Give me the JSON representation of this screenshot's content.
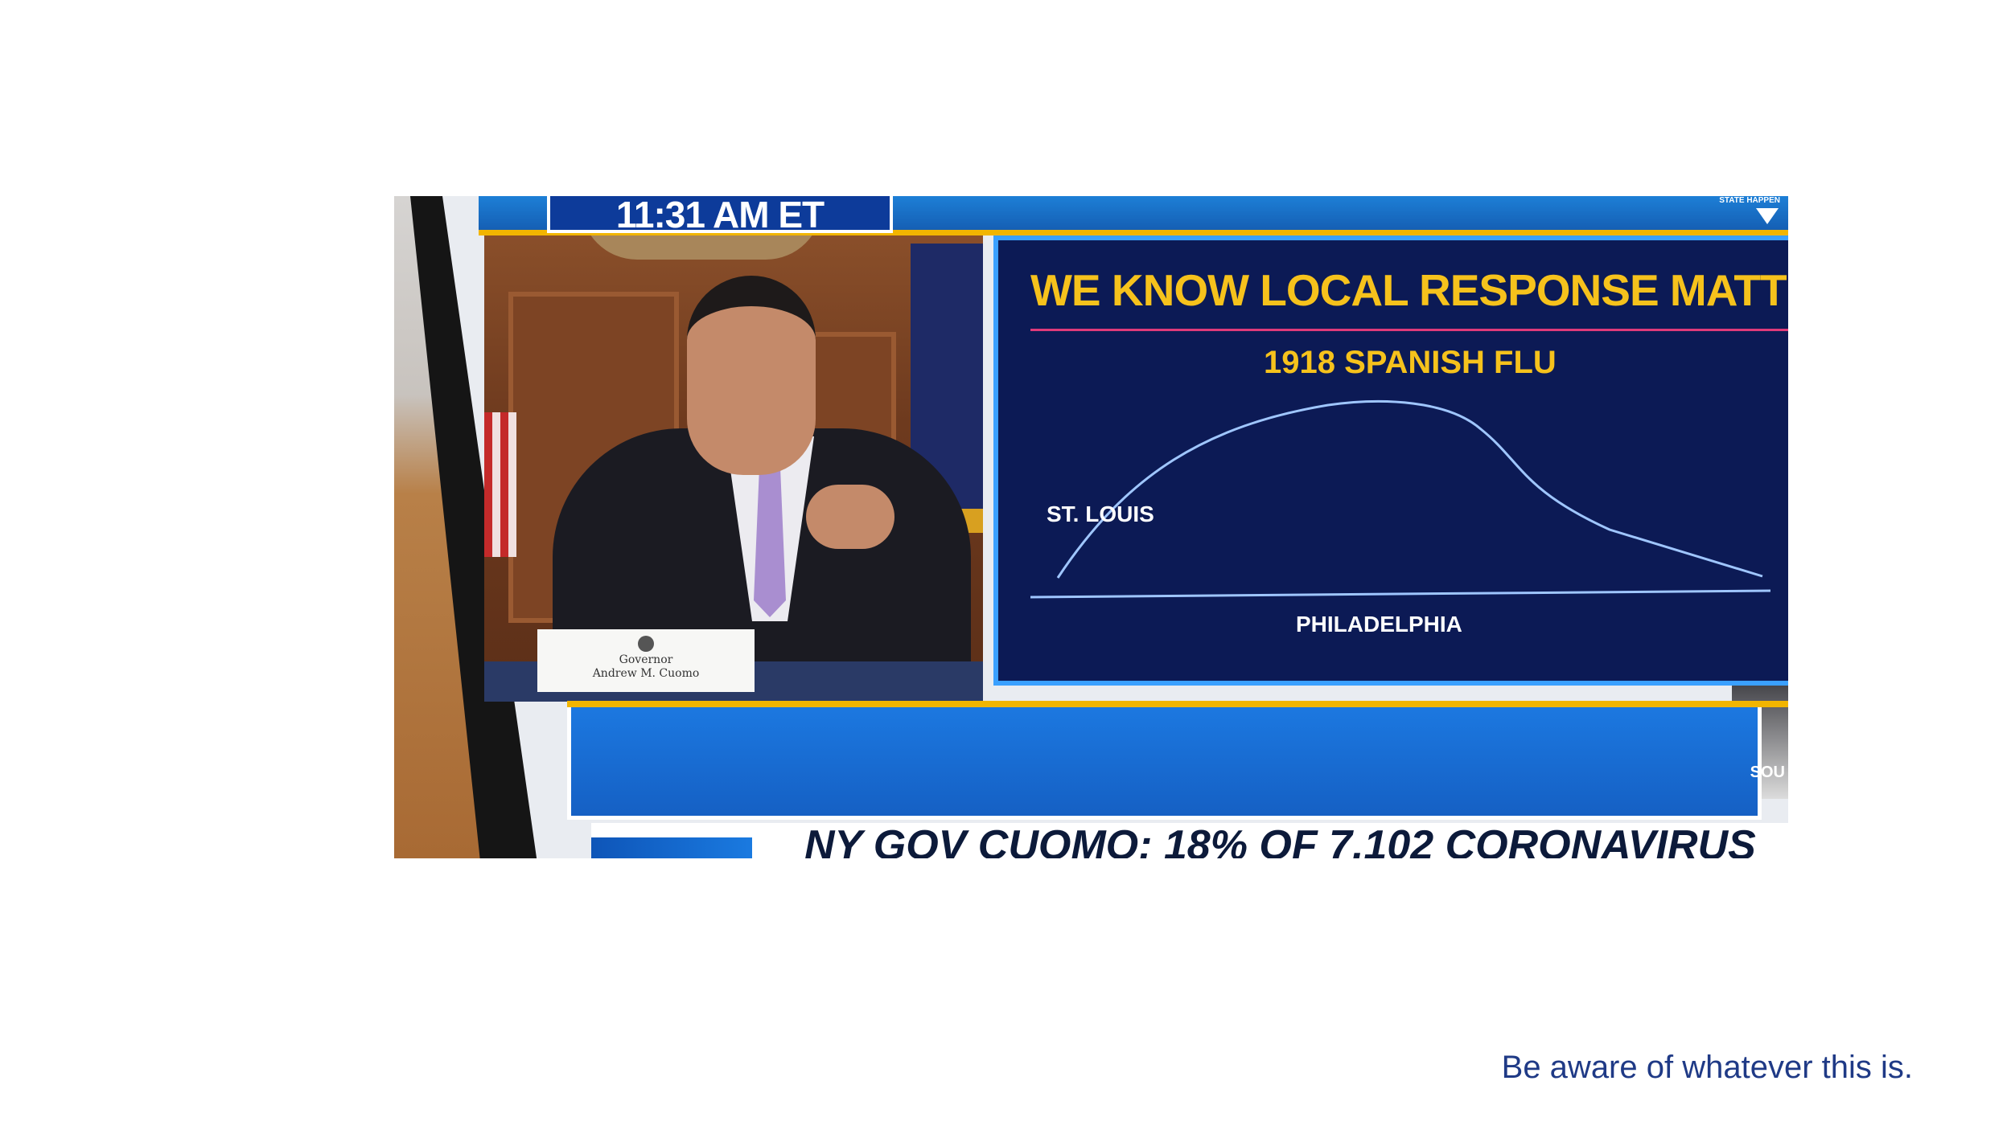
{
  "broadcast": {
    "clock": "11:31 AM ET",
    "network_logo": "STATE HAPPEN",
    "chart_title": "WE KNOW LOCAL RESPONSE MATTERS",
    "chart_subtitle": "1918 SPANISH FLU",
    "label_st_louis": "ST. LOUIS",
    "label_philadelphia": "PHILADELPHIA",
    "nameplate_line1": "Governor",
    "nameplate_line2": "Andrew M. Cuomo",
    "side_label": "SOU",
    "ticker": "NY GOV CUOMO: 18% OF 7,102 CORONAVIRUS"
  },
  "caption": "Be aware of whatever this is.",
  "colors": {
    "caption": "#1f3a86",
    "chart_background": "#0c1a55",
    "title_gold": "#f6c21c",
    "accent_blue": "#1c78e0"
  }
}
